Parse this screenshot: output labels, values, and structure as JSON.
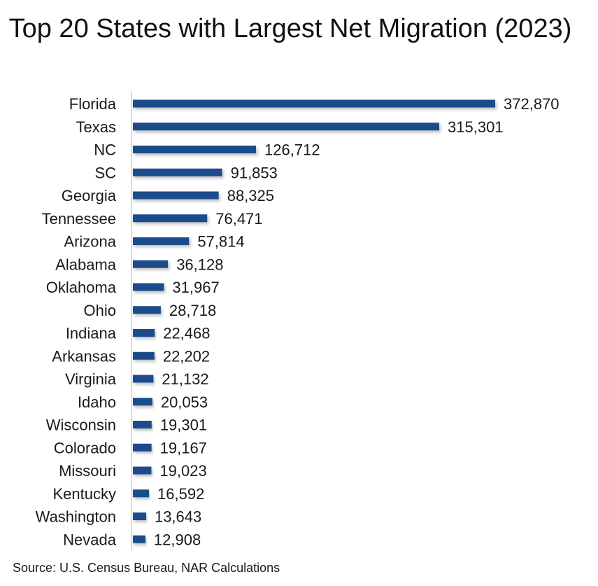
{
  "chart_data": {
    "type": "bar",
    "orientation": "horizontal",
    "title": "Top 20 States with Largest Net Migration (2023)",
    "source": "Source: U.S. Census Bureau, NAR Calculations",
    "categories": [
      "Florida",
      "Texas",
      "NC",
      "SC",
      "Georgia",
      "Tennessee",
      "Arizona",
      "Alabama",
      "Oklahoma",
      "Ohio",
      "Indiana",
      "Arkansas",
      "Virginia",
      "Idaho",
      "Wisconsin",
      "Colorado",
      "Missouri",
      "Kentucky",
      "Washington",
      "Nevada"
    ],
    "values": [
      372870,
      315301,
      126712,
      91853,
      88325,
      76471,
      57814,
      36128,
      31967,
      28718,
      22468,
      22202,
      21132,
      20053,
      19301,
      19167,
      19023,
      16592,
      13643,
      12908
    ],
    "value_labels": [
      "372,870",
      "315,301",
      "126,712",
      "91,853",
      "88,325",
      "76,471",
      "57,814",
      "36,128",
      "31,967",
      "28,718",
      "22,468",
      "22,202",
      "21,132",
      "20,053",
      "19,301",
      "19,167",
      "19,023",
      "16,592",
      "13,643",
      "12,908"
    ],
    "xlim": [
      0,
      372870
    ],
    "grid": false,
    "legend": "none",
    "bar_color": "#1a4b8c"
  }
}
